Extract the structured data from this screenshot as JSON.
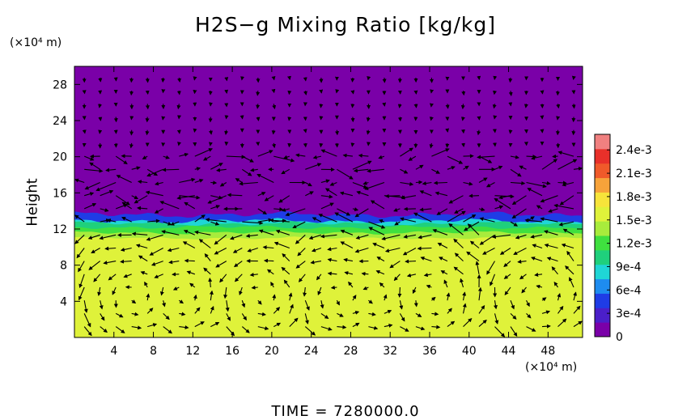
{
  "chart_data": {
    "type": "heatmap",
    "title": "H2S−g Mixing Ratio [kg/kg]",
    "ylabel": "Height",
    "x_unit": "(×10⁴ m)",
    "y_unit": "(×10⁴ m)",
    "footer": "TIME  =  7280000.0",
    "xlim": [
      0,
      51.5
    ],
    "ylim": [
      0,
      30
    ],
    "xticks": [
      4,
      8,
      12,
      16,
      20,
      24,
      28,
      32,
      36,
      40,
      44,
      48
    ],
    "yticks": [
      4,
      8,
      12,
      16,
      20,
      24,
      28
    ],
    "colorbar": {
      "min": 0,
      "max": 0.0026,
      "tick_values": [
        0,
        0.0003,
        0.0006,
        0.0009,
        0.0012,
        0.0015,
        0.0018,
        0.0021,
        0.0024
      ],
      "tick_labels": [
        "0",
        "3e-4",
        "6e-4",
        "9e-4",
        "1.2e-3",
        "1.5e-3",
        "1.8e-3",
        "2.1e-3",
        "2.4e-3"
      ],
      "colors": [
        "#7a00a8",
        "#4b1fc9",
        "#1f3ce6",
        "#1e8cf0",
        "#1fd6d6",
        "#1fd07c",
        "#3fe03f",
        "#a8ec3c",
        "#dff23a",
        "#f7e43a",
        "#f7a33a",
        "#f05a2a",
        "#e8302a",
        "#f08080"
      ]
    },
    "field_layers": [
      {
        "name": "upper",
        "y_range": [
          13.5,
          30
        ],
        "value": 0,
        "color": "#7a00a8"
      },
      {
        "name": "interface",
        "y_range": [
          12.8,
          13.8
        ],
        "value": 0.0004,
        "color": "#1f3ce6"
      },
      {
        "name": "transition",
        "y_range": [
          11,
          12.8
        ],
        "value": 0.0013,
        "color": "#3fe03f"
      },
      {
        "name": "lower",
        "y_range": [
          0,
          11
        ],
        "value": 0.0017,
        "color": "#dff23a"
      }
    ]
  }
}
